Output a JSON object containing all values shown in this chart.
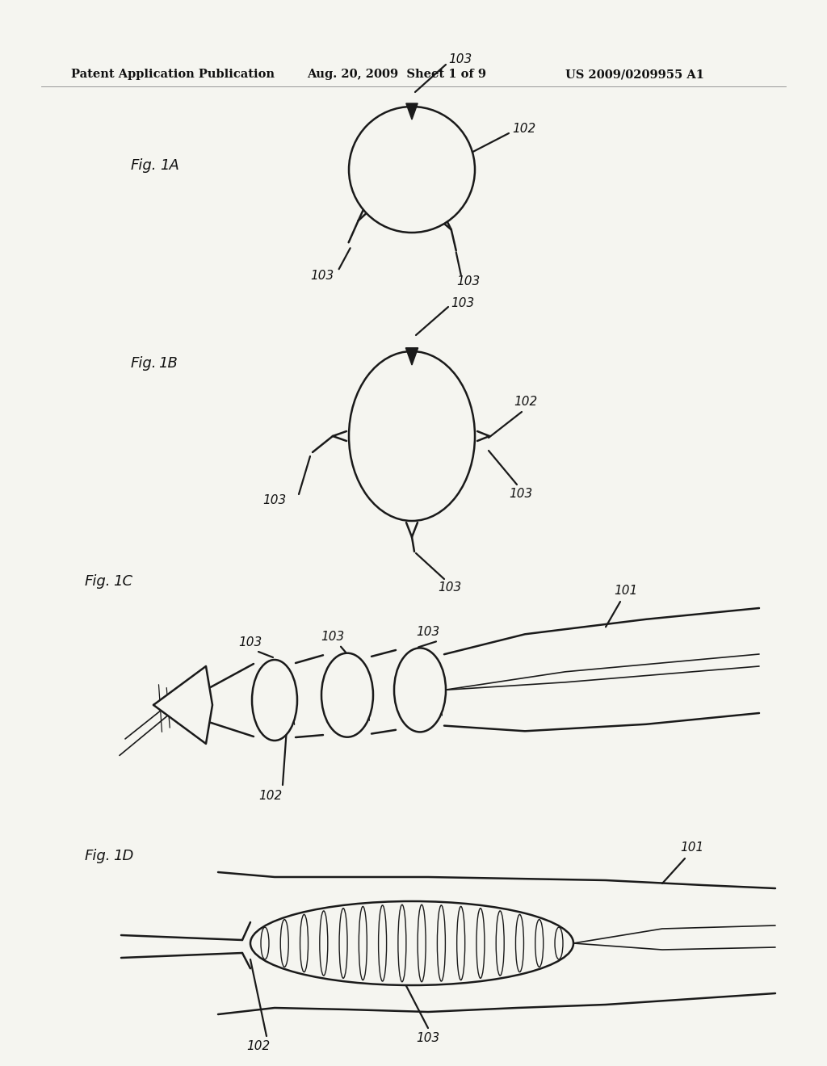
{
  "bg_color": "#f5f5f0",
  "line_color": "#1a1a1a",
  "text_color": "#111111",
  "header_left": "Patent Application Publication",
  "header_mid": "Aug. 20, 2009  Sheet 1 of 9",
  "header_right": "US 2009/0209955 A1",
  "lw": 1.8,
  "lw_thin": 1.2,
  "fs_fig": 13,
  "fs_num": 11
}
